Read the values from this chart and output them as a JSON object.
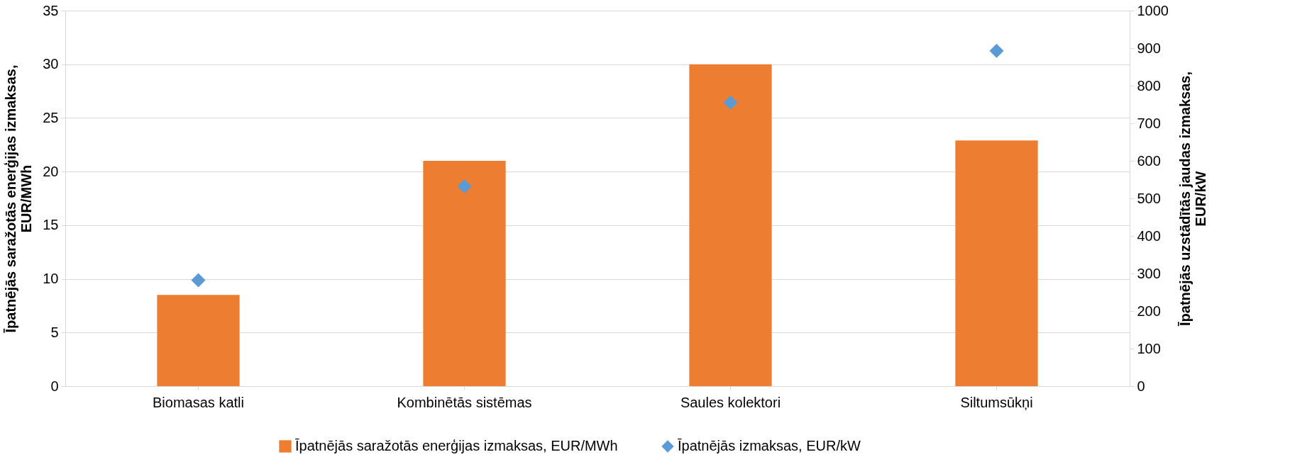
{
  "chart_data": {
    "type": "bar",
    "categories": [
      "Biomasas katli",
      "Kombinētās sistēmas",
      "Saules kolektori",
      "Siltumsūkņi"
    ],
    "ylabel": "Īpatnējās saražotās enerģijas izmaksas, EUR/MWh",
    "y2label": "Īpatnējās uzstādītās jaudas izmaksas, EUR/kW",
    "series": [
      {
        "name": "Īpatnējās saražotās enerģijas izmaksas, EUR/MWh",
        "color": "#ed7d31",
        "values": [
          8.5,
          21,
          30,
          22.9
        ]
      },
      {
        "name": "Īpatnējās izmaksas, EUR/kW",
        "color": "#5b9bd5",
        "type": "scatter",
        "axis": "y2",
        "marker": "diamond",
        "values": [
          282,
          532,
          755,
          893
        ]
      }
    ],
    "ylim": [
      0,
      35
    ],
    "yticks": [
      0,
      5,
      10,
      15,
      20,
      25,
      30,
      35
    ],
    "y2lim": [
      0,
      1000
    ],
    "y2ticks": [
      0,
      100,
      200,
      300,
      400,
      500,
      600,
      700,
      800,
      900,
      1000
    ],
    "grid": "y",
    "legend": "bottom"
  }
}
